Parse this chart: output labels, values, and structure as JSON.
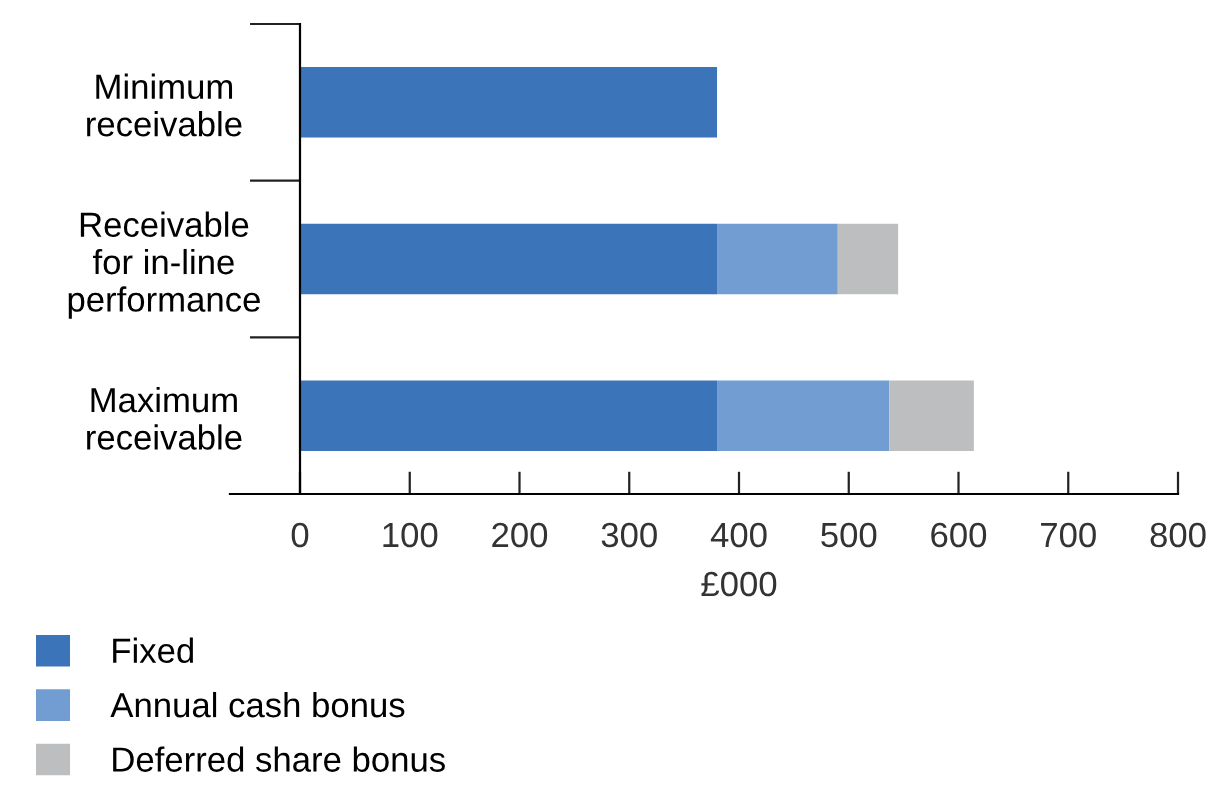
{
  "chart_data": {
    "type": "bar",
    "orientation": "horizontal",
    "stacked": true,
    "xlabel": "£000",
    "categories": [
      "Minimum\nreceivable",
      "Receivable\nfor in-line\nperformance",
      "Maximum\nreceivable"
    ],
    "series": [
      {
        "name": "Fixed",
        "color": "#3b74b8",
        "values": [
          380,
          380,
          380
        ]
      },
      {
        "name": "Annual cash bonus",
        "color": "#719dd2",
        "values": [
          null,
          110,
          157
        ]
      },
      {
        "name": "Deferred share bonus",
        "color": "#bdbec0",
        "values": [
          null,
          55,
          77
        ]
      }
    ],
    "xlim": [
      0,
      800
    ],
    "xticks": [
      0,
      100,
      200,
      300,
      400,
      500,
      600,
      700,
      800
    ],
    "grid": false,
    "legend": "bottom left"
  }
}
